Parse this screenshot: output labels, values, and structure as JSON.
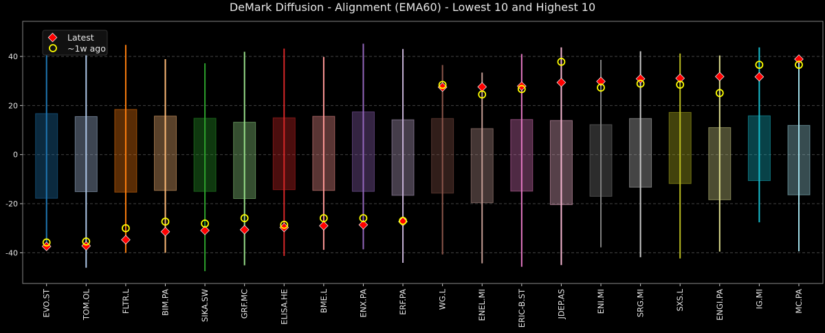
{
  "chart_data": {
    "type": "box-range",
    "title": "DeMark Diffusion - Alignment (EMA60) - Lowest 10 and Highest 10",
    "xlabel": "",
    "ylabel": "",
    "ylim": [
      -52.5,
      54.3
    ],
    "yticks": [
      -40,
      -20,
      0,
      20,
      40
    ],
    "grid": "horizontal dashed",
    "legend": {
      "placement": "top-left",
      "entries": [
        "Latest",
        "~1w ago"
      ]
    },
    "marker_colors": {
      "latest": "#ff0000",
      "week_ago": "#ffff00"
    },
    "categories": [
      "EVO.ST",
      "TOM.OL",
      "FLTR.L",
      "BIM.PA",
      "SIKA.SW",
      "GRF.MC",
      "ELISA.HE",
      "BME.L",
      "ENX.PA",
      "ERF.PA",
      "WG.L",
      "ENEL.MI",
      "ERIC-B.ST",
      "JDEP.AS",
      "ENI.MI",
      "SRG.MI",
      "SXS.L",
      "ENGI.PA",
      "IG.MI",
      "MC.PA"
    ],
    "colors": [
      "#1f77b4",
      "#aec7e8",
      "#ff7f0e",
      "#ffbb78",
      "#2ca02c",
      "#98df8a",
      "#d62728",
      "#ff9896",
      "#9467bd",
      "#c5b0d5",
      "#8c564b",
      "#c49c94",
      "#e377c2",
      "#f7b6d2",
      "#7f7f7f",
      "#c7c7c7",
      "#bcbd22",
      "#dbdb8d",
      "#17becf",
      "#9edae5"
    ],
    "range_min": [
      -36.5,
      -46.1,
      -40.0,
      -40.0,
      -47.5,
      -45.1,
      -41.3,
      -38.8,
      -38.6,
      -44.1,
      -40.7,
      -44.3,
      -45.7,
      -45.0,
      -37.8,
      -41.8,
      -42.3,
      -39.5,
      -27.6,
      -39.4
    ],
    "range_max": [
      49.1,
      45.9,
      44.7,
      38.9,
      37.2,
      41.9,
      43.2,
      39.8,
      45.2,
      43.0,
      36.5,
      33.4,
      41.0,
      43.7,
      38.6,
      42.1,
      41.2,
      40.4,
      43.7,
      38.9
    ],
    "box_low": [
      -17.8,
      -15.1,
      -15.3,
      -14.6,
      -15.0,
      -17.9,
      -14.3,
      -14.6,
      -15.0,
      -16.6,
      -15.7,
      -19.6,
      -14.9,
      -20.4,
      -17.0,
      -13.3,
      -11.8,
      -18.4,
      -10.6,
      -16.4
    ],
    "box_high": [
      16.7,
      15.5,
      18.4,
      15.7,
      14.8,
      13.2,
      15.0,
      15.6,
      17.4,
      14.2,
      14.7,
      10.6,
      14.3,
      13.9,
      12.2,
      14.7,
      17.2,
      11.0,
      15.8,
      11.9
    ],
    "latest": [
      -37.4,
      -37.2,
      -34.7,
      -31.4,
      -30.9,
      -30.6,
      -29.7,
      -29.0,
      -28.6,
      -27.3,
      27.5,
      27.6,
      27.9,
      29.4,
      29.8,
      30.9,
      31.1,
      31.8,
      31.7,
      38.9
    ],
    "week_ago": [
      -35.8,
      -35.4,
      -30.0,
      -27.3,
      -28.1,
      -25.9,
      -28.6,
      -25.9,
      -25.9,
      -27.0,
      28.4,
      24.5,
      26.7,
      37.8,
      27.3,
      28.9,
      28.5,
      25.1,
      36.6,
      36.6
    ]
  }
}
